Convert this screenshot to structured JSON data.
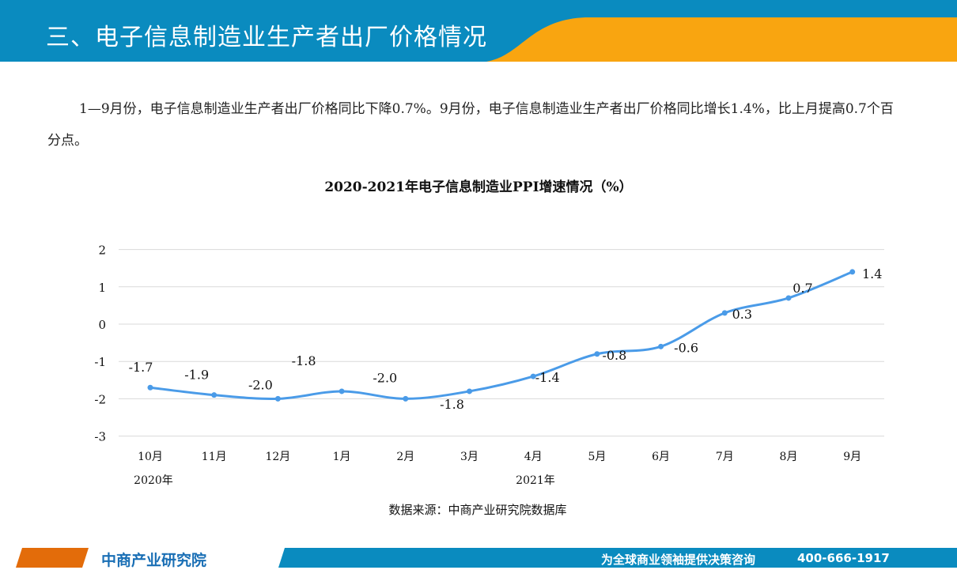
{
  "header": {
    "title": "三、电子信息制造业生产者出厂价格情况"
  },
  "paragraph": "1—9月份，电子信息制造业生产者出厂价格同比下降0.7%。9月份，电子信息制造业生产者出厂价格同比增长1.4%，比上月提高0.7个百分点。",
  "footer": {
    "logo": "中商产业研究院",
    "slogan": "为全球商业领袖提供决策咨询",
    "phone": "400-666-1917"
  },
  "colors": {
    "blue": "#0a8bbf",
    "orange": "#f9a510",
    "line": "#4a9be8"
  },
  "chart_data": {
    "type": "line",
    "title": "2020-2021年电子信息制造业PPI增速情况（%）",
    "categories": [
      "10月",
      "11月",
      "12月",
      "1月",
      "2月",
      "3月",
      "4月",
      "5月",
      "6月",
      "7月",
      "8月",
      "9月"
    ],
    "year_labels": [
      "2020年",
      "2021年"
    ],
    "values": [
      -1.7,
      -1.9,
      -2.0,
      -1.8,
      -2.0,
      -1.8,
      -1.4,
      -0.8,
      -0.6,
      0.3,
      0.7,
      1.4
    ],
    "data_labels": [
      "-1.7",
      "-1.9",
      "-2.0",
      "-1.8",
      "-2.0",
      "-1.8",
      "-1.4",
      "-0.8",
      "-0.6",
      "0.3",
      "0.7",
      "1.4"
    ],
    "yticks": [
      "2",
      "1",
      "0",
      "-1",
      "-2",
      "-3"
    ],
    "ylim": [
      -3,
      2
    ],
    "grid": true,
    "source": "数据来源：中商产业研究院数据库"
  }
}
